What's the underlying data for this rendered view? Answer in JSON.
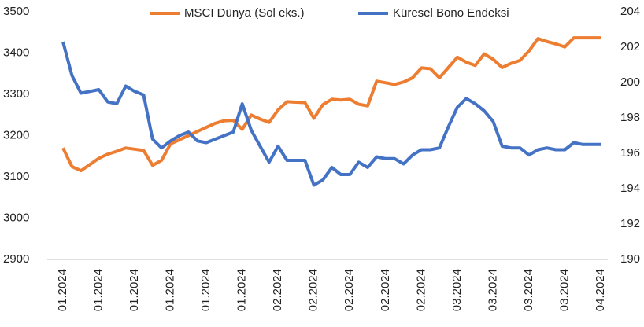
{
  "chart_data": {
    "type": "line",
    "categories": [
      "01.2024",
      null,
      null,
      null,
      "01.2024",
      null,
      null,
      null,
      "01.2024",
      null,
      null,
      null,
      "01.2024",
      null,
      null,
      null,
      "01.2024",
      null,
      null,
      null,
      "01.2024",
      null,
      null,
      null,
      "02.2024",
      null,
      null,
      null,
      "02.2024",
      null,
      null,
      null,
      "02.2024",
      null,
      null,
      null,
      "02.2024",
      null,
      null,
      null,
      "02.2024",
      null,
      null,
      null,
      "03.2024",
      null,
      null,
      null,
      "03.2024",
      null,
      null,
      null,
      "03.2024",
      null,
      null,
      null,
      "03.2024",
      null,
      null,
      null,
      "04.2024"
    ],
    "series": [
      {
        "name": "MSCI Dünya (Sol eks.)",
        "color": "#ed7d31",
        "axis": "y",
        "values": [
          3170,
          3125,
          3115,
          3130,
          3145,
          3155,
          3162,
          3170,
          3167,
          3164,
          3128,
          3140,
          3180,
          3190,
          3200,
          3210,
          3220,
          3230,
          3236,
          3237,
          3215,
          3250,
          3240,
          3232,
          3262,
          3282,
          3281,
          3280,
          3242,
          3275,
          3288,
          3286,
          3288,
          3276,
          3272,
          3332,
          3328,
          3324,
          3330,
          3340,
          3364,
          3362,
          3340,
          3365,
          3390,
          3378,
          3370,
          3398,
          3385,
          3365,
          3375,
          3382,
          3405,
          3435,
          3428,
          3422,
          3415,
          3437,
          3437,
          3437,
          3437
        ]
      },
      {
        "name": "Küresel Bono Endeksi",
        "color": "#4472c4",
        "axis": "y2",
        "values": [
          202.3,
          200.4,
          199.4,
          199.5,
          199.6,
          198.9,
          198.8,
          199.8,
          199.5,
          199.3,
          196.8,
          196.3,
          196.7,
          197.0,
          197.2,
          196.7,
          196.6,
          196.8,
          197.0,
          197.2,
          198.8,
          197.3,
          196.4,
          195.5,
          196.4,
          195.6,
          195.6,
          195.6,
          194.2,
          194.5,
          195.2,
          194.8,
          194.8,
          195.5,
          195.2,
          195.8,
          195.7,
          195.7,
          195.4,
          195.9,
          196.2,
          196.2,
          196.3,
          197.5,
          198.6,
          199.1,
          198.8,
          198.4,
          197.8,
          196.4,
          196.3,
          196.3,
          195.9,
          196.2,
          196.3,
          196.2,
          196.2,
          196.6,
          196.5,
          196.5,
          196.5
        ]
      }
    ],
    "ylim": [
      2900,
      3500
    ],
    "yticks": [
      2900,
      3000,
      3100,
      3200,
      3300,
      3400,
      3500
    ],
    "y2lim": [
      190,
      204
    ],
    "y2ticks": [
      190,
      192,
      194,
      196,
      198,
      200,
      202,
      204
    ],
    "grid": false,
    "legend": "top"
  }
}
